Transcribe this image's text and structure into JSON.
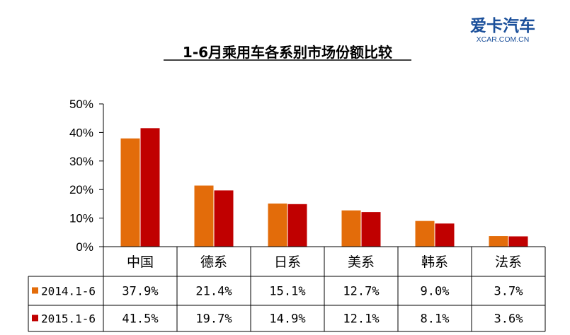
{
  "logo": {
    "main": "爱卡汽车",
    "sub": "XCAR.COM.CN",
    "color": "#1a4f9a"
  },
  "chart_data": {
    "type": "bar",
    "title": "1-6月乘用车各系别市场份额比较",
    "categories": [
      "中国",
      "德系",
      "日系",
      "美系",
      "韩系",
      "法系"
    ],
    "ylim": [
      0,
      50
    ],
    "yticks": [
      "0%",
      "10%",
      "20%",
      "30%",
      "40%",
      "50%"
    ],
    "grid": false,
    "legend_position": "data-table",
    "series": [
      {
        "name": "2014.1-6",
        "values": [
          37.9,
          21.4,
          15.1,
          12.7,
          9.0,
          3.7
        ],
        "labels": [
          "37.9%",
          "21.4%",
          "15.1%",
          "12.7%",
          "9.0%",
          "3.7%"
        ],
        "color": "#e36c0a"
      },
      {
        "name": "2015.1-6",
        "values": [
          41.5,
          19.7,
          14.9,
          12.1,
          8.1,
          3.6
        ],
        "labels": [
          "41.5%",
          "19.7%",
          "14.9%",
          "12.1%",
          "8.1%",
          "3.6%"
        ],
        "color": "#c00000"
      }
    ]
  }
}
